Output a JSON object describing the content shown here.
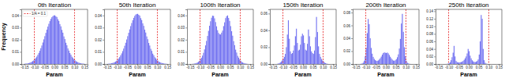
{
  "chart_data": [
    {
      "type": "histogram",
      "title": "0th Iteration",
      "xlabel": "Param",
      "ylabel": "Frequency",
      "color": "#5b5bef",
      "bins": [
        -0.15,
        -0.145,
        -0.14,
        -0.135,
        -0.13,
        -0.125,
        -0.12,
        -0.115,
        -0.11,
        -0.105,
        -0.1,
        -0.095,
        -0.09,
        -0.085,
        -0.08,
        -0.075,
        -0.07,
        -0.065,
        -0.06,
        -0.055,
        -0.05,
        -0.045,
        -0.04,
        -0.035,
        -0.03,
        -0.025,
        -0.02,
        -0.015,
        -0.01,
        -0.005,
        0,
        0.005,
        0.01,
        0.015,
        0.02,
        0.025,
        0.03,
        0.035,
        0.04,
        0.045,
        0.05,
        0.055,
        0.06,
        0.065,
        0.07,
        0.075,
        0.08,
        0.085,
        0.09,
        0.095,
        0.1,
        0.105,
        0.11,
        0.115,
        0.12,
        0.125,
        0.13,
        0.135,
        0.14,
        0.145,
        0.15
      ],
      "values": [
        0.0002,
        0.0003,
        0.0004,
        0.0005,
        0.0007,
        0.001,
        0.0013,
        0.0018,
        0.0024,
        0.003,
        0.0039,
        0.0049,
        0.0061,
        0.0075,
        0.0091,
        0.0109,
        0.013,
        0.0152,
        0.0177,
        0.0203,
        0.0229,
        0.0256,
        0.0283,
        0.0308,
        0.0331,
        0.0353,
        0.0371,
        0.0385,
        0.0394,
        0.04,
        0.0401,
        0.0392,
        0.0387,
        0.0369,
        0.0355,
        0.0329,
        0.031,
        0.0281,
        0.0258,
        0.0227,
        0.0205,
        0.0175,
        0.0154,
        0.0128,
        0.011,
        0.009,
        0.0076,
        0.006,
        0.005,
        0.0038,
        0.0031,
        0.0023,
        0.0018,
        0.0014,
        0.001,
        0.0007,
        0.0005,
        0.0004,
        0.0003,
        0.0002
      ],
      "xlim": [
        -0.165,
        0.165
      ],
      "xticks": [
        -0.15,
        {
          "value": -0.1,
          "label": "-0.10"
        },
        -0.05,
        {
          "value": 0,
          "label": "0.00"
        },
        0.05,
        {
          "value": 0.1,
          "label": "0.10"
        },
        0.15
      ],
      "ylim": [
        0,
        0.045
      ],
      "yticks": [
        {
          "value": 0,
          "label": "0.00"
        },
        0.01,
        0.02,
        0.03,
        0.04
      ],
      "reference_lines": {
        "name": "1/A = 0.1",
        "color": "#e41a1c",
        "line_style": "dashed",
        "values": [
          -0.1,
          0.1
        ]
      },
      "legend": "upper left"
    },
    {
      "type": "histogram",
      "title": "50th Iteration",
      "xlabel": "Param",
      "color": "#5b5bef",
      "bins": [
        -0.15,
        -0.145,
        -0.14,
        -0.135,
        -0.13,
        -0.125,
        -0.12,
        -0.115,
        -0.11,
        -0.105,
        -0.1,
        -0.095,
        -0.09,
        -0.085,
        -0.08,
        -0.075,
        -0.07,
        -0.065,
        -0.06,
        -0.055,
        -0.05,
        -0.045,
        -0.04,
        -0.035,
        -0.03,
        -0.025,
        -0.02,
        -0.015,
        -0.01,
        -0.005,
        0,
        0.005,
        0.01,
        0.015,
        0.02,
        0.025,
        0.03,
        0.035,
        0.04,
        0.045,
        0.05,
        0.055,
        0.06,
        0.065,
        0.07,
        0.075,
        0.08,
        0.085,
        0.09,
        0.095,
        0.1,
        0.105,
        0.11,
        0.115,
        0.12,
        0.125,
        0.13,
        0.135,
        0.14,
        0.145,
        0.15
      ],
      "values": [
        0.0001,
        0.0002,
        0.0003,
        0.0004,
        0.0006,
        0.0008,
        0.0011,
        0.0015,
        0.002,
        0.0027,
        0.0035,
        0.0045,
        0.0057,
        0.0071,
        0.0087,
        0.0106,
        0.0127,
        0.015,
        0.0175,
        0.0202,
        0.0229,
        0.0257,
        0.0285,
        0.0312,
        0.0337,
        0.036,
        0.038,
        0.0396,
        0.0407,
        0.0412,
        0.0413,
        0.0405,
        0.0398,
        0.0378,
        0.0362,
        0.0335,
        0.0314,
        0.0283,
        0.0259,
        0.0227,
        0.0204,
        0.0173,
        0.0152,
        0.0125,
        0.0108,
        0.0085,
        0.0072,
        0.0056,
        0.0046,
        0.0034,
        0.0028,
        0.0019,
        0.0015,
        0.0011,
        0.0008,
        0.0006,
        0.0004,
        0.0003,
        0.0002,
        0.0001
      ],
      "xlim": [
        -0.165,
        0.165
      ],
      "xticks": [
        -0.15,
        {
          "value": -0.1,
          "label": "-0.10"
        },
        -0.05,
        {
          "value": 0,
          "label": "0.00"
        },
        0.05,
        {
          "value": 0.1,
          "label": "0.10"
        },
        0.15
      ],
      "ylim": [
        0,
        0.045
      ],
      "yticks": [
        {
          "value": 0,
          "label": "0.00"
        },
        0.01,
        0.02,
        0.03,
        0.04
      ],
      "reference_lines": {
        "color": "#e41a1c",
        "line_style": "dashed",
        "values": [
          -0.1,
          0.1
        ]
      }
    },
    {
      "type": "histogram",
      "title": "100th Iteration",
      "xlabel": "Param",
      "color": "#5b5bef",
      "bins": [
        -0.15,
        -0.145,
        -0.14,
        -0.135,
        -0.13,
        -0.125,
        -0.12,
        -0.115,
        -0.11,
        -0.105,
        -0.1,
        -0.095,
        -0.09,
        -0.085,
        -0.08,
        -0.075,
        -0.07,
        -0.065,
        -0.06,
        -0.055,
        -0.05,
        -0.045,
        -0.04,
        -0.035,
        -0.03,
        -0.025,
        -0.02,
        -0.015,
        -0.01,
        -0.005,
        0,
        0.005,
        0.01,
        0.015,
        0.02,
        0.025,
        0.03,
        0.035,
        0.04,
        0.045,
        0.05,
        0.055,
        0.06,
        0.065,
        0.07,
        0.075,
        0.08,
        0.085,
        0.09,
        0.095,
        0.1,
        0.105,
        0.11,
        0.115,
        0.12,
        0.125,
        0.13,
        0.135,
        0.14,
        0.145,
        0.15
      ],
      "values": [
        0,
        0,
        0.0001,
        0.0002,
        0.0003,
        0.0005,
        0.0008,
        0.0012,
        0.0018,
        0.0026,
        0.0037,
        0.0051,
        0.0069,
        0.0092,
        0.012,
        0.0153,
        0.019,
        0.0231,
        0.0273,
        0.0315,
        0.0352,
        0.0381,
        0.0398,
        0.0396,
        0.0376,
        0.0345,
        0.031,
        0.0278,
        0.0256,
        0.0245,
        0.0243,
        0.0258,
        0.0275,
        0.0312,
        0.0343,
        0.0378,
        0.0394,
        0.04,
        0.0379,
        0.0355,
        0.0312,
        0.027,
        0.0233,
        0.0188,
        0.0155,
        0.0118,
        0.0094,
        0.0067,
        0.0052,
        0.0036,
        0.0027,
        0.0017,
        0.0012,
        0.0008,
        0.0005,
        0.0003,
        0.0002,
        0.0001,
        0,
        0
      ],
      "xlim": [
        -0.165,
        0.165
      ],
      "xticks": [
        -0.15,
        {
          "value": -0.1,
          "label": "-0.10"
        },
        -0.05,
        {
          "value": 0,
          "label": "0.00"
        },
        0.05,
        {
          "value": 0.1,
          "label": "0.10"
        },
        0.15
      ],
      "ylim": [
        0,
        0.045
      ],
      "yticks": [
        {
          "value": 0,
          "label": "0.00"
        },
        0.01,
        0.02,
        0.03,
        0.04
      ],
      "reference_lines": {
        "color": "#e41a1c",
        "line_style": "dashed",
        "values": [
          -0.1,
          0.1
        ]
      }
    },
    {
      "type": "histogram",
      "title": "150th Iteration",
      "xlabel": "Param",
      "color": "#5b5bef",
      "bins": [
        -0.15,
        -0.145,
        -0.14,
        -0.135,
        -0.13,
        -0.125,
        -0.12,
        -0.115,
        -0.11,
        -0.105,
        -0.1,
        -0.095,
        -0.09,
        -0.085,
        -0.08,
        -0.075,
        -0.07,
        -0.065,
        -0.06,
        -0.055,
        -0.05,
        -0.045,
        -0.04,
        -0.035,
        -0.03,
        -0.025,
        -0.02,
        -0.015,
        -0.01,
        -0.005,
        0,
        0.005,
        0.01,
        0.015,
        0.02,
        0.025,
        0.03,
        0.035,
        0.04,
        0.045,
        0.05,
        0.055,
        0.06,
        0.065,
        0.07,
        0.075,
        0.08,
        0.085,
        0.09,
        0.095,
        0.1,
        0.105,
        0.11,
        0.115,
        0.12,
        0.125,
        0.13,
        0.135,
        0.14,
        0.145,
        0.15
      ],
      "values": [
        0,
        0,
        0,
        0,
        0.0002,
        0.0005,
        0.001,
        0.0018,
        0.003,
        0.0045,
        0.0062,
        0.0085,
        0.012,
        0.02,
        0.035,
        0.052,
        0.03,
        0.015,
        0.012,
        0.013,
        0.016,
        0.022,
        0.033,
        0.042,
        0.025,
        0.016,
        0.017,
        0.023,
        0.033,
        0.036,
        0.034,
        0.025,
        0.017,
        0.016,
        0.024,
        0.041,
        0.033,
        0.021,
        0.015,
        0.013,
        0.012,
        0.016,
        0.032,
        0.056,
        0.038,
        0.021,
        0.012,
        0.0085,
        0.006,
        0.0042,
        0.003,
        0.0018,
        0.001,
        0.0005,
        0.0002,
        0,
        0,
        0,
        0,
        0
      ],
      "xlim": [
        -0.165,
        0.165
      ],
      "xticks": [
        -0.15,
        {
          "value": -0.1,
          "label": "-0.10"
        },
        -0.05,
        {
          "value": 0,
          "label": "0.00"
        },
        0.05,
        {
          "value": 0.1,
          "label": "0.10"
        },
        0.15
      ],
      "ylim": [
        0,
        0.065
      ],
      "yticks": [
        {
          "value": 0,
          "label": "0.00"
        },
        0.02,
        0.04,
        0.06
      ],
      "reference_lines": {
        "color": "#e41a1c",
        "line_style": "dashed",
        "values": [
          -0.1,
          0.1
        ]
      }
    },
    {
      "type": "histogram",
      "title": "200th Iteration",
      "xlabel": "Param",
      "color": "#5b5bef",
      "bins": [
        -0.15,
        -0.145,
        -0.14,
        -0.135,
        -0.13,
        -0.125,
        -0.12,
        -0.115,
        -0.11,
        -0.105,
        -0.1,
        -0.095,
        -0.09,
        -0.085,
        -0.08,
        -0.075,
        -0.07,
        -0.065,
        -0.06,
        -0.055,
        -0.05,
        -0.045,
        -0.04,
        -0.035,
        -0.03,
        -0.025,
        -0.02,
        -0.015,
        -0.01,
        -0.005,
        0,
        0.005,
        0.01,
        0.015,
        0.02,
        0.025,
        0.03,
        0.035,
        0.04,
        0.045,
        0.05,
        0.055,
        0.06,
        0.065,
        0.07,
        0.075,
        0.08,
        0.085,
        0.09,
        0.095,
        0.1,
        0.105,
        0.11,
        0.115,
        0.12,
        0.125,
        0.13,
        0.135,
        0.14,
        0.145,
        0.15
      ],
      "values": [
        0,
        0,
        0,
        0,
        0.0001,
        0.0003,
        0.0008,
        0.002,
        0.005,
        0.012,
        0.025,
        0.048,
        0.07,
        0.062,
        0.04,
        0.025,
        0.016,
        0.011,
        0.008,
        0.006,
        0.005,
        0.0048,
        0.0055,
        0.007,
        0.009,
        0.0115,
        0.0145,
        0.017,
        0.018,
        0.0175,
        0.017,
        0.0178,
        0.0165,
        0.014,
        0.0112,
        0.0088,
        0.0068,
        0.0054,
        0.005,
        0.0058,
        0.0075,
        0.0105,
        0.015,
        0.024,
        0.039,
        0.063,
        0.078,
        0.05,
        0.026,
        0.012,
        0.005,
        0.002,
        0.0008,
        0.0003,
        0.0001,
        0,
        0,
        0,
        0,
        0
      ],
      "xlim": [
        -0.165,
        0.165
      ],
      "xticks": [
        -0.15,
        {
          "value": -0.1,
          "label": "-0.10"
        },
        -0.05,
        {
          "value": 0,
          "label": "0.00"
        },
        0.05,
        {
          "value": 0.1,
          "label": "0.10"
        },
        0.15
      ],
      "ylim": [
        0,
        0.085
      ],
      "yticks": [
        {
          "value": 0,
          "label": "0.00"
        },
        0.02,
        0.04,
        0.06,
        0.08
      ],
      "reference_lines": {
        "color": "#e41a1c",
        "line_style": "dashed",
        "values": [
          -0.1,
          0.1
        ]
      }
    },
    {
      "type": "histogram",
      "title": "250th Iteration",
      "xlabel": "Param",
      "color": "#5b5bef",
      "bins": [
        -0.15,
        -0.145,
        -0.14,
        -0.135,
        -0.13,
        -0.125,
        -0.12,
        -0.115,
        -0.11,
        -0.105,
        -0.1,
        -0.095,
        -0.09,
        -0.085,
        -0.08,
        -0.075,
        -0.07,
        -0.065,
        -0.06,
        -0.055,
        -0.05,
        -0.045,
        -0.04,
        -0.035,
        -0.03,
        -0.025,
        -0.02,
        -0.015,
        -0.01,
        -0.005,
        0,
        0.005,
        0.01,
        0.015,
        0.02,
        0.025,
        0.03,
        0.035,
        0.04,
        0.045,
        0.05,
        0.055,
        0.06,
        0.065,
        0.07,
        0.075,
        0.08,
        0.085,
        0.09,
        0.095,
        0.1,
        0.105,
        0.11,
        0.115,
        0.12,
        0.125,
        0.13,
        0.135,
        0.14,
        0.145,
        0.15
      ],
      "values": [
        0,
        0,
        0,
        0,
        0,
        0,
        0,
        0.0001,
        0.0003,
        0.0008,
        0.002,
        0.0045,
        0.01,
        0.018,
        0.03,
        0.048,
        0.02,
        0.008,
        0.005,
        0.004,
        0.004,
        0.0045,
        0.005,
        0.006,
        0.008,
        0.011,
        0.015,
        0.02,
        0.028,
        0.04,
        0.034,
        0.022,
        0.015,
        0.01,
        0.007,
        0.0055,
        0.005,
        0.006,
        0.008,
        0.012,
        0.025,
        0.06,
        0.13,
        0.12,
        0.04,
        0.01,
        0.003,
        0.001,
        0.0003,
        0.0001,
        0,
        0,
        0,
        0,
        0,
        0,
        0,
        0,
        0,
        0
      ],
      "xlim": [
        -0.165,
        0.165
      ],
      "xticks": [
        -0.15,
        {
          "value": -0.1,
          "label": "-0.10"
        },
        -0.05,
        {
          "value": 0,
          "label": "0.00"
        },
        0.05,
        {
          "value": 0.1,
          "label": "0.10"
        },
        0.15
      ],
      "ylim": [
        0,
        0.145
      ],
      "yticks": [
        {
          "value": 0,
          "label": "0.00"
        },
        0.02,
        0.04,
        0.06,
        0.08,
        {
          "value": 0.1,
          "label": "0.10"
        },
        0.12,
        0.14
      ],
      "reference_lines": {
        "color": "#e41a1c",
        "line_style": "dashed",
        "values": [
          -0.1,
          0.1
        ]
      }
    }
  ]
}
